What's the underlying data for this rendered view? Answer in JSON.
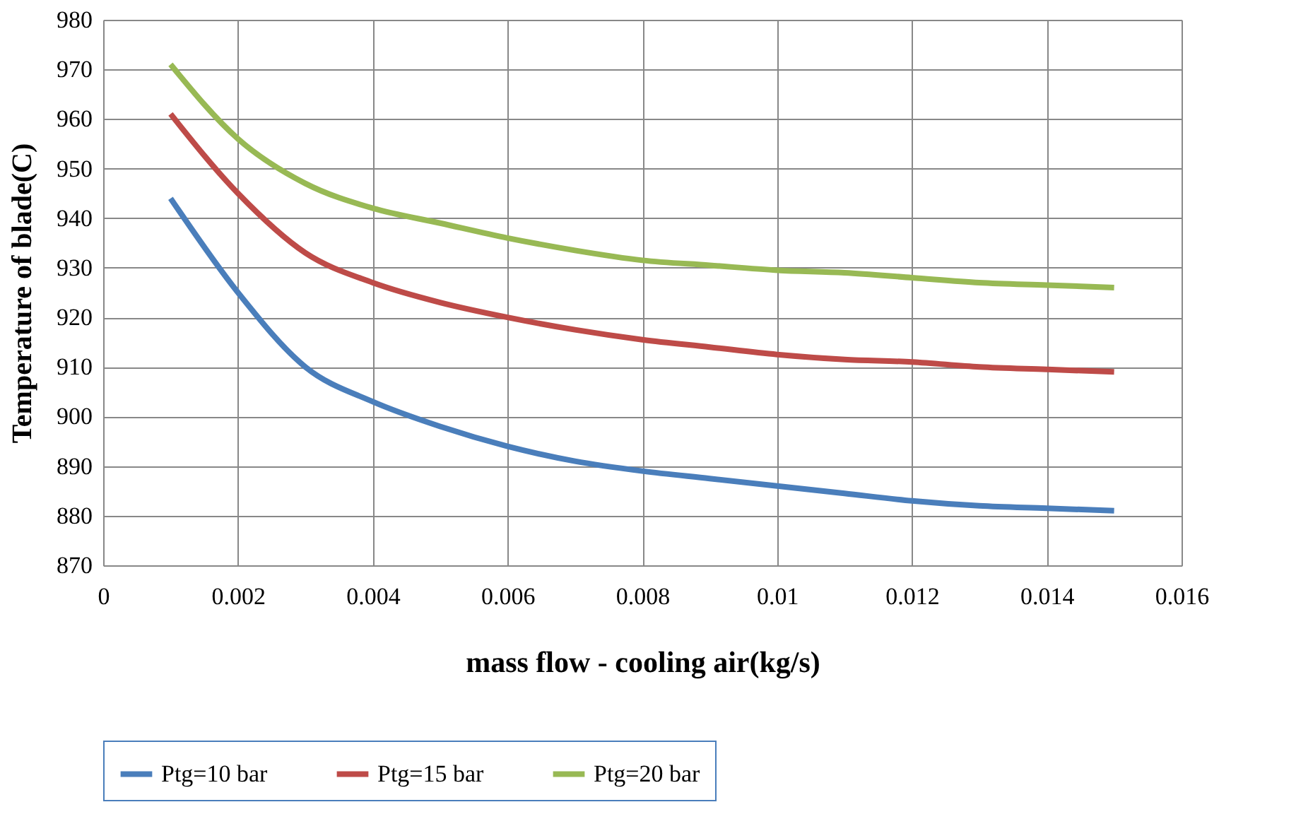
{
  "chart_data": {
    "type": "line",
    "xlabel": "mass flow - cooling air(kg/s)",
    "ylabel": "Temperature of blade(C)",
    "x": [
      0.001,
      0.002,
      0.003,
      0.004,
      0.005,
      0.006,
      0.007,
      0.008,
      0.009,
      0.01,
      0.011,
      0.012,
      0.013,
      0.014,
      0.015
    ],
    "series": [
      {
        "name": "Ptg=10 bar",
        "color": "#4a7ebb",
        "values": [
          944,
          925,
          910,
          903,
          898,
          894,
          891,
          889,
          887.5,
          886,
          884.5,
          883,
          882,
          881.5,
          881
        ]
      },
      {
        "name": "Ptg=15 bar",
        "color": "#be4b48",
        "values": [
          961,
          945,
          933,
          927,
          923,
          920,
          917.5,
          915.5,
          914,
          912.5,
          911.5,
          911,
          910,
          909.5,
          909
        ]
      },
      {
        "name": "Ptg=20 bar",
        "color": "#98b954",
        "values": [
          971,
          956,
          947,
          942,
          939,
          936,
          933.5,
          931.5,
          930.5,
          929.5,
          929,
          928,
          927,
          926.5,
          926
        ]
      }
    ],
    "xlim": [
      0,
      0.016
    ],
    "xticks": [
      0,
      0.002,
      0.004,
      0.006,
      0.008,
      0.01,
      0.012,
      0.014,
      0.016
    ],
    "ylim": [
      870,
      980
    ],
    "yticks": [
      870,
      880,
      890,
      900,
      910,
      920,
      930,
      940,
      950,
      960,
      970,
      980
    ],
    "grid": true,
    "legend": "bottom",
    "marker": "none",
    "line_style": "solid"
  }
}
